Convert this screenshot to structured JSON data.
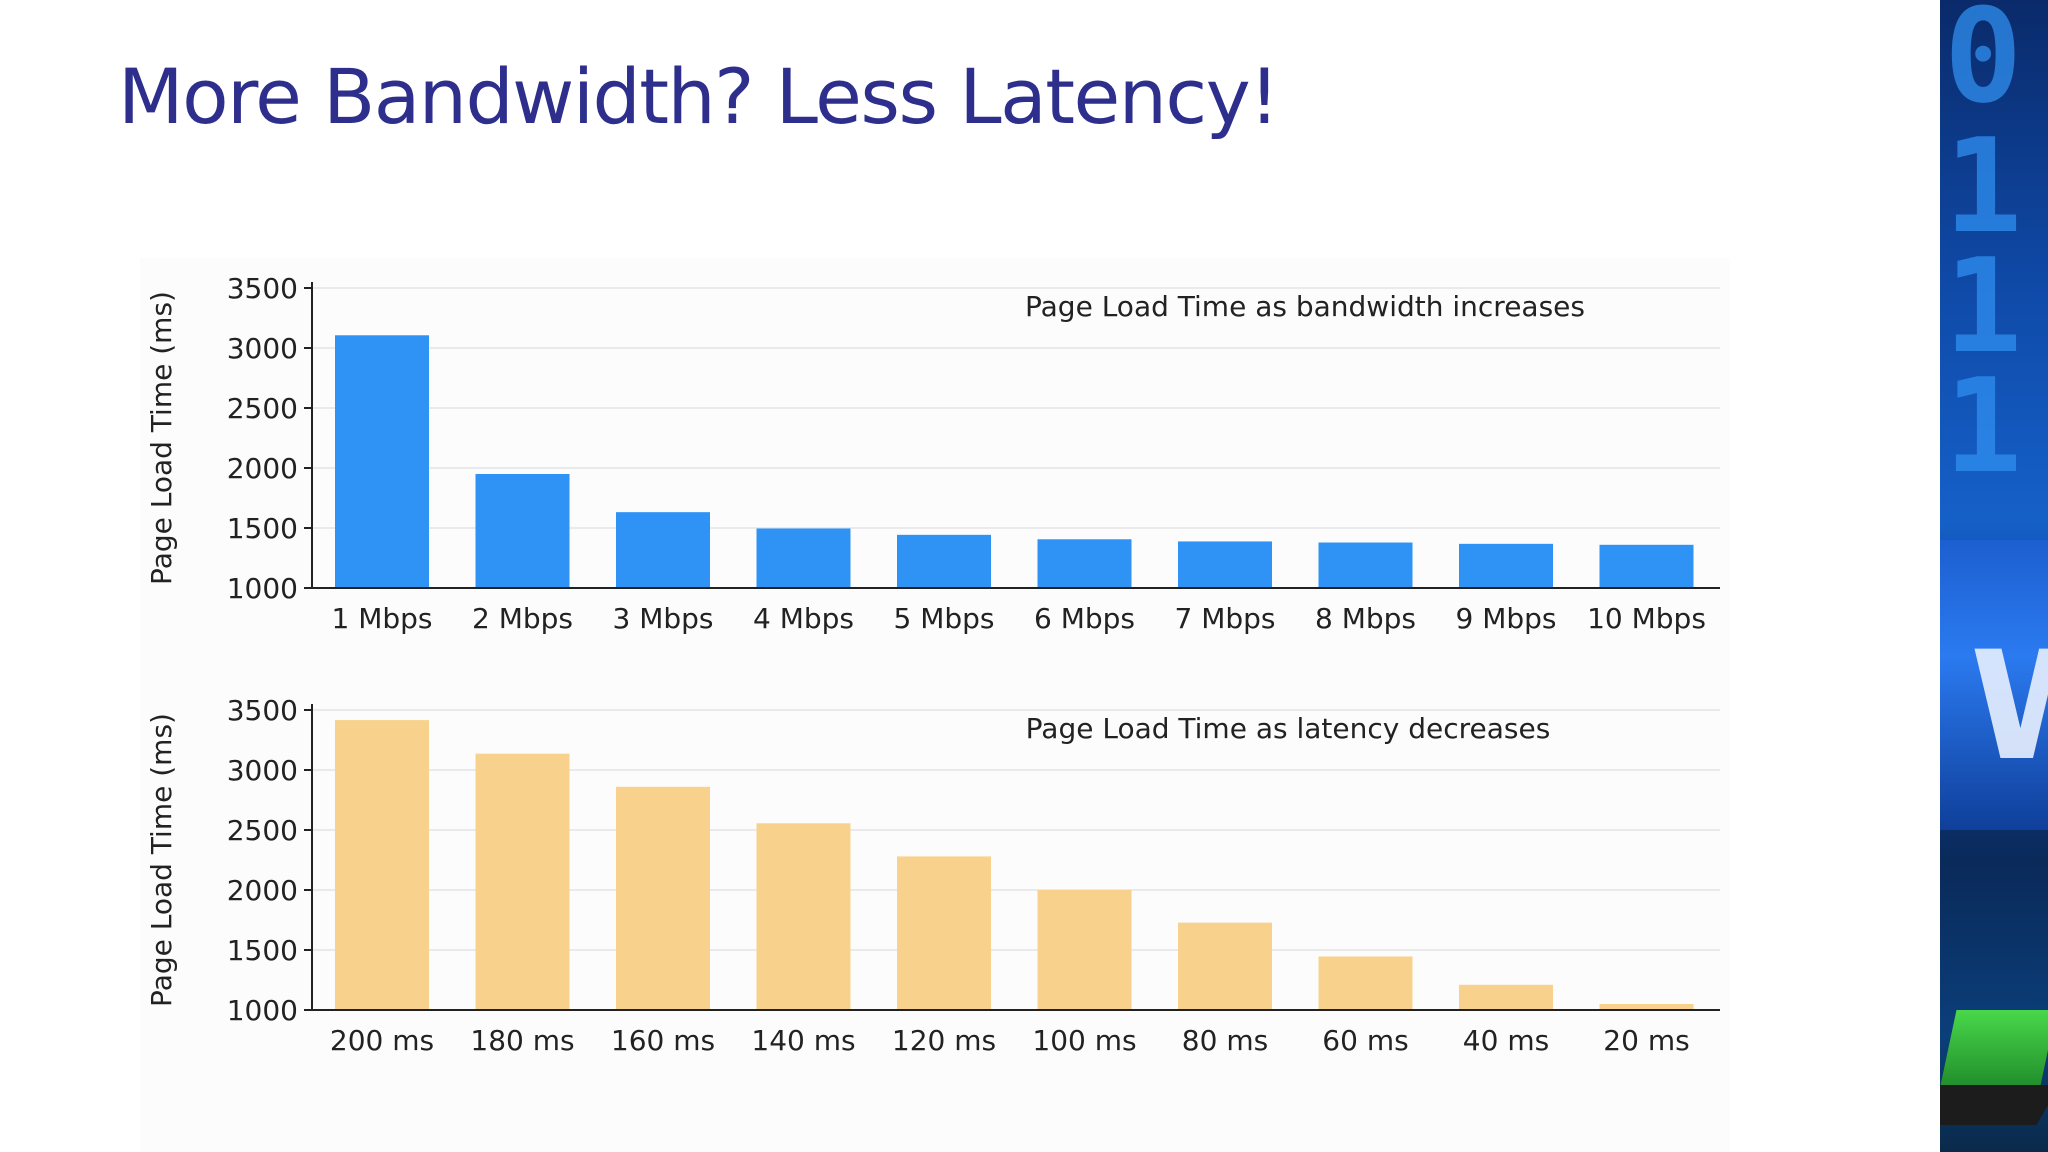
{
  "slide": {
    "title": "More Bandwidth? Less Latency!"
  },
  "colors": {
    "title": "#2e2e8c",
    "bandwidth_bars": "#2e93f5",
    "latency_bars": "#f8d28c",
    "axis": "#222222",
    "grid": "#e4e4e8"
  },
  "chart_data": [
    {
      "type": "bar",
      "title": "Page Load Time as bandwidth increases",
      "ylabel": "Page Load Time (ms)",
      "xlabel": "",
      "ylim": [
        1000,
        3500
      ],
      "yticks": [
        1000,
        1500,
        2000,
        2500,
        3000,
        3500
      ],
      "grid": true,
      "categories": [
        "1 Mbps",
        "2 Mbps",
        "3 Mbps",
        "4 Mbps",
        "5 Mbps",
        "6 Mbps",
        "7 Mbps",
        "8 Mbps",
        "9 Mbps",
        "10 Mbps"
      ],
      "values": [
        3106,
        1950,
        1632,
        1496,
        1443,
        1406,
        1388,
        1379,
        1368,
        1360
      ],
      "color": "#2e93f5"
    },
    {
      "type": "bar",
      "title": "Page Load Time as latency decreases",
      "ylabel": "Page Load Time (ms)",
      "xlabel": "",
      "ylim": [
        1000,
        3500
      ],
      "yticks": [
        1000,
        1500,
        2000,
        2500,
        3000,
        3500
      ],
      "grid": true,
      "categories": [
        "200 ms",
        "180 ms",
        "160 ms",
        "140 ms",
        "120 ms",
        "100 ms",
        "80 ms",
        "60 ms",
        "40 ms",
        "20 ms"
      ],
      "values": [
        3416,
        3136,
        2860,
        2556,
        2280,
        2000,
        1728,
        1446,
        1210,
        1050
      ],
      "color": "#f8d28c"
    }
  ],
  "decoration": {
    "binary_digits": [
      "0",
      "1",
      "1",
      "1"
    ],
    "letter": "W"
  }
}
